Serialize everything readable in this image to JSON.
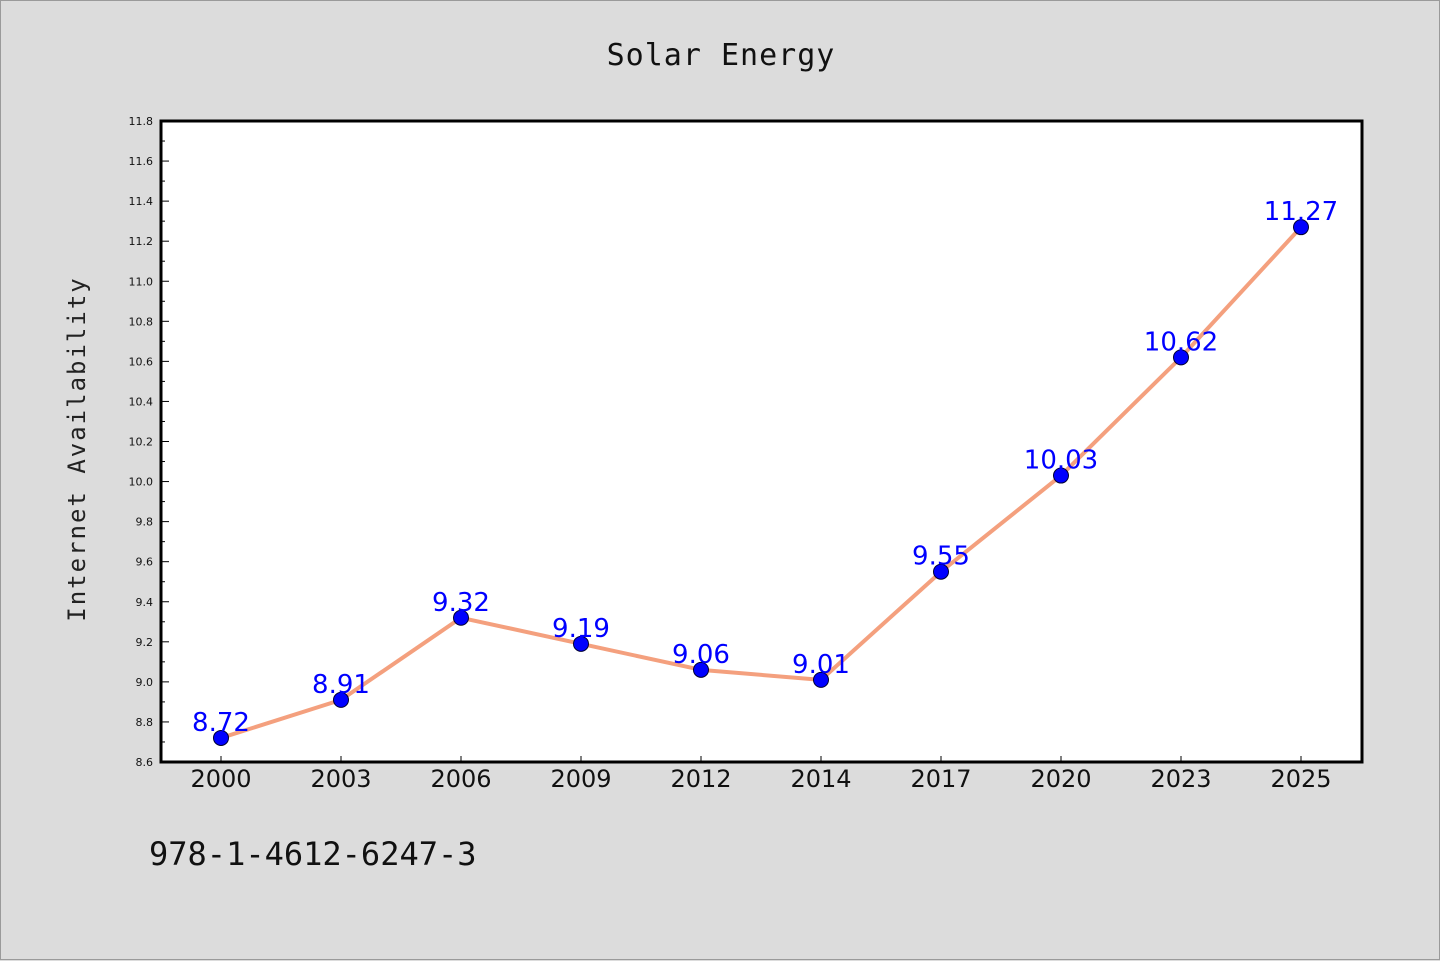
{
  "chart_data": {
    "type": "line",
    "title": "Solar Energy",
    "xlabel": "",
    "ylabel": "Internet Availability",
    "categories": [
      "2000",
      "2003",
      "2006",
      "2009",
      "2012",
      "2014",
      "2017",
      "2020",
      "2023",
      "2025"
    ],
    "values": [
      8.72,
      8.91,
      9.32,
      9.19,
      9.06,
      9.01,
      9.55,
      10.03,
      10.62,
      11.27
    ],
    "data_labels": [
      "8.72",
      "8.91",
      "9.32",
      "9.19",
      "9.06",
      "9.01",
      "9.55",
      "10.03",
      "10.62",
      "11.27"
    ],
    "ylim": [
      8.6,
      11.8
    ],
    "yticks": [
      "8.6",
      "8.8",
      "9.0",
      "9.2",
      "9.4",
      "9.6",
      "9.8",
      "10.0",
      "10.2",
      "10.4",
      "10.6",
      "10.8",
      "11.0",
      "11.2",
      "11.4",
      "11.6",
      "11.8"
    ],
    "grid": false,
    "line_color": "#f4a07e",
    "marker_color": "#0000ff",
    "label_color": "#0000ff"
  },
  "footer": {
    "text": "978-1-4612-6247-3"
  }
}
